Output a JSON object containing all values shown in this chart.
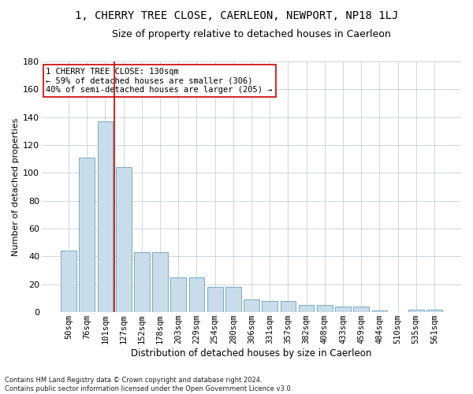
{
  "title": "1, CHERRY TREE CLOSE, CAERLEON, NEWPORT, NP18 1LJ",
  "subtitle": "Size of property relative to detached houses in Caerleon",
  "xlabel": "Distribution of detached houses by size in Caerleon",
  "ylabel": "Number of detached properties",
  "categories": [
    "50sqm",
    "76sqm",
    "101sqm",
    "127sqm",
    "152sqm",
    "178sqm",
    "203sqm",
    "229sqm",
    "254sqm",
    "280sqm",
    "306sqm",
    "331sqm",
    "357sqm",
    "382sqm",
    "408sqm",
    "433sqm",
    "459sqm",
    "484sqm",
    "510sqm",
    "535sqm",
    "561sqm"
  ],
  "values": [
    44,
    111,
    137,
    104,
    43,
    43,
    25,
    25,
    18,
    18,
    9,
    8,
    8,
    5,
    5,
    4,
    4,
    1,
    0,
    2,
    2
  ],
  "bar_color": "#c9dcea",
  "bar_edge_color": "#7aaac8",
  "grid_color": "#c8cfe0",
  "vline_color": "#cc0000",
  "vline_x_index": 3,
  "annotation_text": "1 CHERRY TREE CLOSE: 130sqm\n← 59% of detached houses are smaller (306)\n40% of semi-detached houses are larger (205) →",
  "annotation_box_facecolor": "#ffffff",
  "annotation_box_edgecolor": "#cc0000",
  "ylim": [
    0,
    180
  ],
  "yticks": [
    0,
    20,
    40,
    60,
    80,
    100,
    120,
    140,
    160,
    180
  ],
  "footer": "Contains HM Land Registry data © Crown copyright and database right 2024.\nContains public sector information licensed under the Open Government Licence v3.0.",
  "bg_color": "#ffffff",
  "title_fontsize": 10,
  "subtitle_fontsize": 9,
  "xlabel_fontsize": 8.5,
  "ylabel_fontsize": 8,
  "tick_fontsize": 7.5,
  "annot_fontsize": 7.5,
  "footer_fontsize": 6
}
